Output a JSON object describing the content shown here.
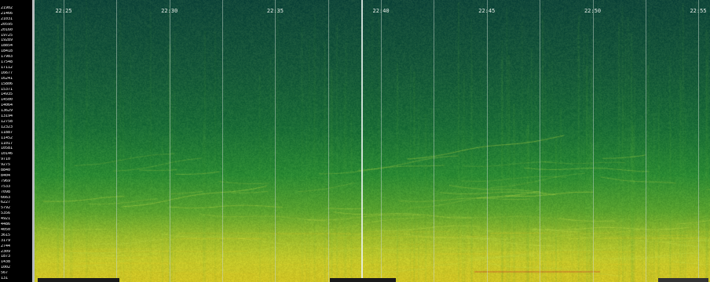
{
  "window": {
    "title": ""
  },
  "time_axis": {
    "ticks": [
      "22:25",
      "22:30",
      "22:35",
      "22:40",
      "22:45",
      "22:50",
      "22:55"
    ]
  },
  "frequency_axis": {
    "labels": [
      "21902",
      "21466",
      "21031",
      "20595",
      "20160",
      "19725",
      "19289",
      "18854",
      "18418",
      "17983",
      "17548",
      "17112",
      "16677",
      "16241",
      "15806",
      "15371",
      "14935",
      "14500",
      "14064",
      "13629",
      "13194",
      "12758",
      "12323",
      "11887",
      "11452",
      "11017",
      "10581",
      "10146",
      "9710",
      "9275",
      "8840",
      "8404",
      "7969",
      "7533",
      "7098",
      "6663",
      "6227",
      "5792",
      "5356",
      "4921",
      "4486",
      "4050",
      "3615",
      "3179",
      "2744",
      "2309",
      "1873",
      "1438",
      "1002",
      "567",
      "131"
    ]
  },
  "colors": {
    "background_top": "#0d3b2e",
    "background_mid": "#1f7a3c",
    "background_low": "#b8c832",
    "ruler": "#000000",
    "gridline": "#c8d6cd"
  },
  "status_bar": {
    "left": "",
    "middle": "",
    "right": ""
  }
}
